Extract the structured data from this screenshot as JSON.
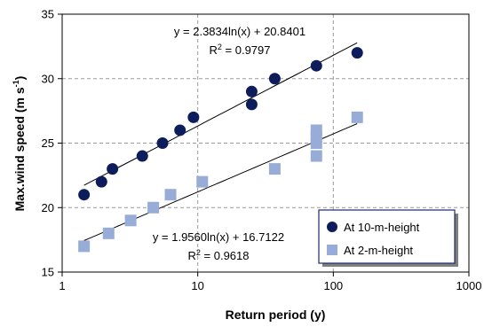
{
  "chart_data": {
    "type": "scatter",
    "xscale": "log",
    "xlim": [
      1,
      1000
    ],
    "ylim": [
      15,
      35
    ],
    "xticks": [
      "1",
      "10",
      "100",
      "1000"
    ],
    "yticks": [
      "15",
      "20",
      "25",
      "30",
      "35"
    ],
    "grid": "dashed",
    "xlabel": "Return period (y)",
    "ylabel": "Max.wind speed (m s",
    "ylabel_sup": "-1",
    "ylabel_close": ")",
    "legend_position": "bottom-right",
    "series": [
      {
        "name": "At 10-m-height",
        "marker": "circle",
        "color": "#0d1d5c",
        "x": [
          1.45,
          1.95,
          2.35,
          3.9,
          5.5,
          7.4,
          9.3,
          25,
          25,
          37,
          75,
          150
        ],
        "y": [
          21,
          22,
          23,
          24,
          25,
          26,
          27,
          28,
          29,
          30,
          31,
          32
        ],
        "trendline": {
          "a": 2.3834,
          "b": 20.8401,
          "x_range": [
            1.45,
            150
          ],
          "equation": "y = 2.3834ln(x) + 20.8401",
          "r2_label": "R",
          "r2_sup": "2",
          "r2_value": " = 0.9797"
        }
      },
      {
        "name": "At 2-m-height",
        "marker": "square",
        "color": "#97acd6",
        "x": [
          1.45,
          2.2,
          3.2,
          4.7,
          6.3,
          10.8,
          37,
          75,
          75,
          75,
          75,
          150
        ],
        "y": [
          17,
          18,
          19,
          20,
          21,
          22,
          23,
          24,
          25,
          25.5,
          26,
          27
        ],
        "trendline": {
          "a": 1.956,
          "b": 16.7122,
          "x_range": [
            1.45,
            150
          ],
          "equation": "y = 1.9560ln(x) + 16.7122",
          "r2_label": "R",
          "r2_sup": "2",
          "r2_value": " = 0.9618"
        }
      }
    ]
  }
}
